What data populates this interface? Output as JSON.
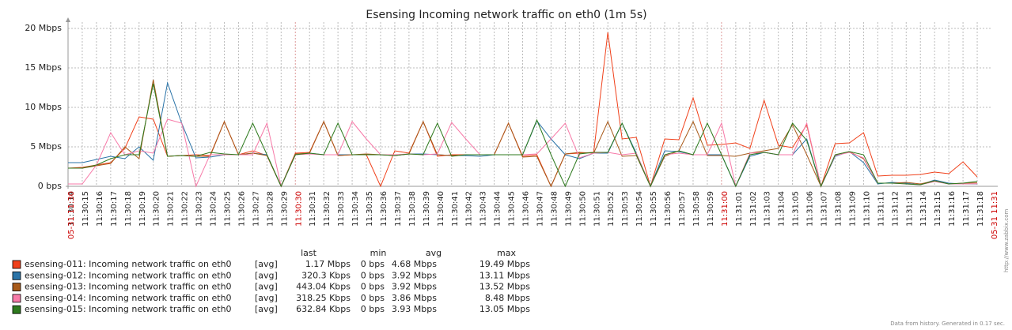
{
  "chart_data": {
    "type": "line",
    "title": "Esensing Incoming network traffic on eth0 (1m 5s)",
    "x": [
      "11:30:14",
      "11:30:15",
      "11:30:16",
      "11:30:17",
      "11:30:18",
      "11:30:19",
      "11:30:20",
      "11:30:21",
      "11:30:22",
      "11:30:23",
      "11:30:24",
      "11:30:25",
      "11:30:26",
      "11:30:27",
      "11:30:28",
      "11:30:29",
      "11:30:30",
      "11:30:31",
      "11:30:32",
      "11:30:33",
      "11:30:34",
      "11:30:35",
      "11:30:36",
      "11:30:37",
      "11:30:38",
      "11:30:39",
      "11:30:40",
      "11:30:41",
      "11:30:42",
      "11:30:43",
      "11:30:44",
      "11:30:45",
      "11:30:46",
      "11:30:47",
      "11:30:48",
      "11:30:49",
      "11:30:50",
      "11:30:51",
      "11:30:52",
      "11:30:53",
      "11:30:54",
      "11:30:55",
      "11:30:56",
      "11:30:57",
      "11:30:58",
      "11:30:59",
      "11:31:00",
      "11:31:01",
      "11:31:02",
      "11:31:03",
      "11:31:04",
      "11:31:05",
      "11:31:06",
      "11:31:07",
      "11:31:08",
      "11:31:09",
      "11:31:10",
      "11:31:11",
      "11:31:12",
      "11:31:13",
      "11:31:14",
      "11:31:15",
      "11:31:16",
      "11:31:17",
      "11:31:18"
    ],
    "xlim": [
      {
        "value": "11:30:14",
        "label": "05-31 11:30"
      },
      {
        "value": "11:31:19",
        "label": "05-31 11:31"
      }
    ],
    "ylim": [
      0,
      20
    ],
    "yticks": [
      {
        "value": 0,
        "label": "0 bps"
      },
      {
        "value": 5,
        "label": "5 Mbps"
      },
      {
        "value": 10,
        "label": "10 Mbps"
      },
      {
        "value": 15,
        "label": "15 Mbps"
      },
      {
        "value": 20,
        "label": "20 Mbps"
      }
    ],
    "grid": true,
    "legend_headers": [
      "last",
      "min",
      "avg",
      "max"
    ],
    "series": [
      {
        "name": "esensing-011: Incoming network traffic on eth0",
        "color": "#f0401a",
        "legend": [
          "[avg]",
          "1.17 Mbps",
          "0 bps",
          "4.68 Mbps",
          "19.49 Mbps"
        ],
        "values": [
          2.3,
          2.4,
          2.7,
          3.0,
          4.8,
          8.8,
          8.5,
          3.8,
          3.9,
          4.0,
          3.9,
          8.2,
          4.0,
          4.5,
          3.9,
          0,
          4.2,
          4.3,
          8.2,
          3.9,
          4.0,
          4.0,
          0,
          4.5,
          4.2,
          8.2,
          3.8,
          4.0,
          4.0,
          4.0,
          4.0,
          8.0,
          3.8,
          4.0,
          0,
          4.1,
          4.2,
          4.3,
          19.5,
          6.0,
          6.2,
          0,
          6.0,
          5.9,
          11.2,
          5.2,
          5.3,
          5.5,
          4.8,
          10.9,
          5.2,
          4.9,
          7.8,
          0,
          5.4,
          5.5,
          6.8,
          1.3,
          1.4,
          1.4,
          1.5,
          1.8,
          1.6,
          3.1,
          1.2
        ]
      },
      {
        "name": "esensing-012: Incoming network traffic on eth0",
        "color": "#2b74a8",
        "legend": [
          "[avg]",
          "320.3 Kbps",
          "0 bps",
          "3.92 Mbps",
          "13.11 Mbps"
        ],
        "values": [
          3.0,
          3.0,
          3.4,
          3.8,
          3.5,
          5.0,
          3.3,
          13.1,
          8.0,
          3.6,
          3.7,
          4.0,
          4.0,
          4.2,
          4.0,
          0,
          4.0,
          4.2,
          4.0,
          4.0,
          4.0,
          4.0,
          4.0,
          3.9,
          4.1,
          4.1,
          4.0,
          3.9,
          3.9,
          3.8,
          4.0,
          4.0,
          4.0,
          8.3,
          6.0,
          4.0,
          3.5,
          4.2,
          4.2,
          8.0,
          4.2,
          0,
          4.5,
          4.4,
          4.0,
          4.0,
          4.0,
          0,
          3.8,
          4.3,
          4.0,
          4.0,
          6.0,
          0,
          3.8,
          4.4,
          3.0,
          0.3,
          0.5,
          0.4,
          0.2,
          0.8,
          0.4,
          0.3,
          0.3
        ]
      },
      {
        "name": "esensing-013: Incoming network traffic on eth0",
        "color": "#a85a1a",
        "legend": [
          "[avg]",
          "443.04 Kbps",
          "0 bps",
          "3.92 Mbps",
          "13.52 Mbps"
        ],
        "values": [
          2.3,
          2.3,
          2.6,
          2.9,
          5.0,
          3.5,
          13.5,
          3.8,
          3.9,
          3.8,
          3.8,
          8.2,
          4.0,
          4.2,
          3.9,
          0,
          4.1,
          4.2,
          8.2,
          3.9,
          4.0,
          4.1,
          4.0,
          3.9,
          4.1,
          8.2,
          4.0,
          3.9,
          4.0,
          4.0,
          4.0,
          8.0,
          3.7,
          3.8,
          0,
          4.1,
          4.3,
          4.2,
          8.2,
          3.8,
          3.9,
          0,
          3.8,
          4.5,
          8.2,
          3.9,
          3.9,
          3.8,
          4.2,
          4.5,
          4.8,
          7.8,
          4.0,
          0,
          4.0,
          4.4,
          3.5,
          0.4,
          0.4,
          0.5,
          0.3,
          0.7,
          0.3,
          0.4,
          0.44
        ]
      },
      {
        "name": "esensing-014: Incoming network traffic on eth0",
        "color": "#f77aa8",
        "legend": [
          "[avg]",
          "318.25 Kbps",
          "0 bps",
          "3.86 Mbps",
          "8.48 Mbps"
        ],
        "values": [
          0.3,
          0.3,
          2.7,
          6.8,
          4.0,
          4.5,
          4.2,
          8.5,
          8.0,
          0,
          4.0,
          4.0,
          4.0,
          4.0,
          8.0,
          0,
          4.0,
          4.1,
          4.0,
          4.0,
          8.2,
          6.0,
          4.0,
          4.0,
          4.1,
          4.0,
          4.1,
          8.1,
          6.0,
          4.0,
          4.0,
          4.0,
          4.0,
          4.1,
          6.0,
          8.0,
          3.6,
          4.2,
          4.3,
          4.0,
          4.2,
          0,
          4.0,
          4.2,
          4.0,
          4.0,
          8.0,
          0,
          4.2,
          4.3,
          4.0,
          4.0,
          8.0,
          0,
          3.9,
          4.3,
          3.6,
          0.4,
          0.4,
          0.3,
          0.2,
          0.6,
          0.3,
          0.3,
          0.32
        ]
      },
      {
        "name": "esensing-015: Incoming network traffic on eth0",
        "color": "#2e7a1e",
        "legend": [
          "[avg]",
          "632.84 Kbps",
          "0 bps",
          "3.93 Mbps",
          "13.05 Mbps"
        ],
        "values": [
          2.3,
          2.3,
          2.7,
          3.5,
          4.0,
          4.0,
          13.0,
          3.8,
          3.9,
          3.8,
          4.3,
          4.1,
          4.0,
          8.0,
          4.0,
          0,
          4.0,
          4.2,
          4.0,
          8.0,
          4.0,
          4.0,
          4.0,
          3.9,
          4.1,
          4.0,
          8.0,
          3.8,
          4.0,
          4.0,
          4.0,
          4.0,
          4.0,
          8.4,
          4.0,
          0,
          4.1,
          4.3,
          4.3,
          8.0,
          4.0,
          0,
          4.0,
          4.5,
          4.0,
          8.0,
          4.0,
          0,
          4.0,
          4.3,
          4.0,
          8.0,
          5.8,
          0,
          4.0,
          4.4,
          4.0,
          0.4,
          0.4,
          0.3,
          0.2,
          0.7,
          0.3,
          0.4,
          0.63
        ]
      }
    ],
    "side_note": "http://www.zabbix.com",
    "footer": "Data from history. Generated in 0.17 sec."
  }
}
